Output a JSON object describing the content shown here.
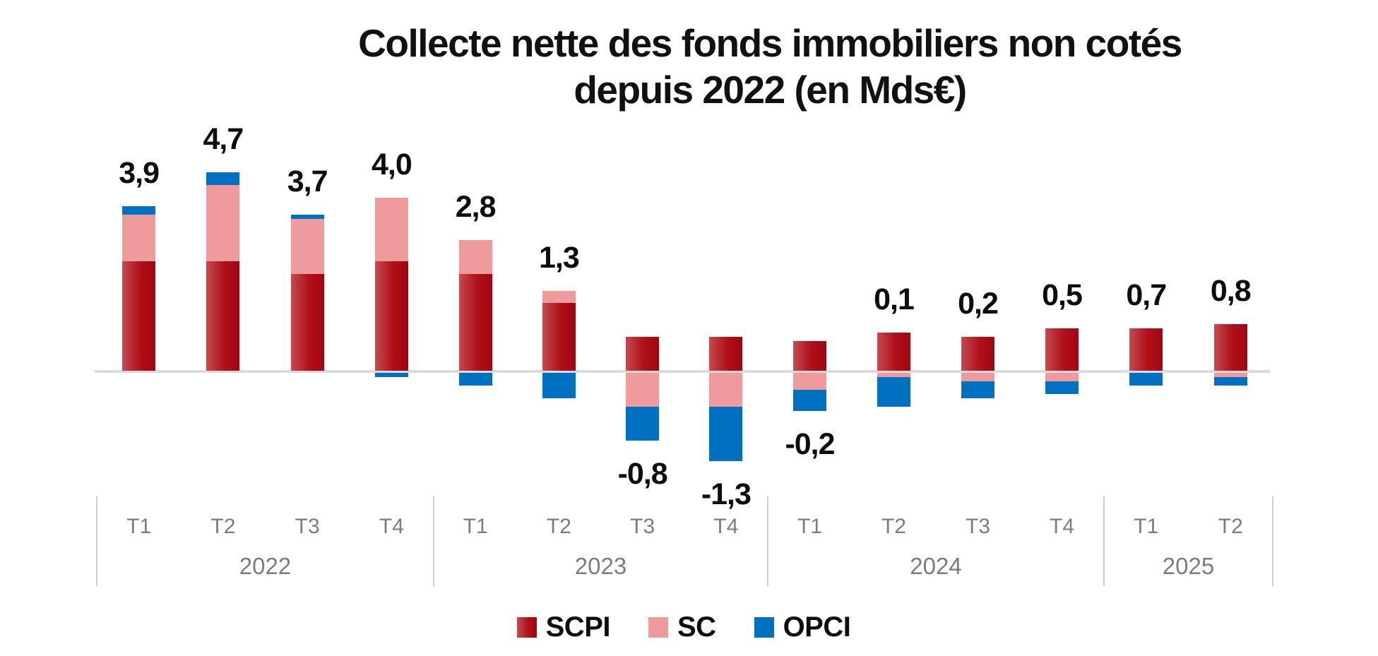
{
  "title": {
    "line1": "Collecte nette des fonds immobiliers non cotés",
    "line2": "depuis 2022 (en Mds€)"
  },
  "legend": {
    "items": [
      {
        "id": "scpi",
        "label": "SCPI",
        "color": "#b01018"
      },
      {
        "id": "sc",
        "label": "SC",
        "color": "#f09b9b"
      },
      {
        "id": "opci",
        "label": "OPCI",
        "color": "#0071c1"
      }
    ],
    "position": "bottom"
  },
  "colors": {
    "scpi_gradient_left": "#c44b51",
    "scpi_gradient_right": "#a20510",
    "sc_pink": "#f09b9b",
    "opci_blue": "#0071c1",
    "zero_line": "#dbdbdb",
    "axis_text": "#7c7c7c",
    "separator": "#cdcdcd",
    "label_text": "#0d0d0d"
  },
  "chart_data": {
    "type": "bar",
    "stacked": true,
    "title": "Collecte nette des fonds immobiliers non cotés depuis 2022 (en Mds€)",
    "unit": "Mds€",
    "grid": false,
    "y_axis_visible": false,
    "legend_position": "bottom",
    "series_order": [
      "SCPI",
      "SC",
      "OPCI"
    ],
    "groups": [
      {
        "year": "2022",
        "quarters": [
          {
            "label": "T1",
            "SCPI": 2.6,
            "SC": 1.1,
            "OPCI": 0.2,
            "total": 3.9,
            "total_label": "3,9"
          },
          {
            "label": "T2",
            "SCPI": 2.6,
            "SC": 1.8,
            "OPCI": 0.3,
            "total": 4.7,
            "total_label": "4,7"
          },
          {
            "label": "T3",
            "SCPI": 2.3,
            "SC": 1.3,
            "OPCI": 0.1,
            "total": 3.7,
            "total_label": "3,7"
          },
          {
            "label": "T4",
            "SCPI": 2.6,
            "SC": 1.5,
            "OPCI": -0.1,
            "total": 4.0,
            "total_label": "4,0"
          }
        ]
      },
      {
        "year": "2023",
        "quarters": [
          {
            "label": "T1",
            "SCPI": 2.3,
            "SC": 0.8,
            "OPCI": -0.3,
            "total": 2.8,
            "total_label": "2,8"
          },
          {
            "label": "T2",
            "SCPI": 1.6,
            "SC": 0.3,
            "OPCI": -0.6,
            "total": 1.3,
            "total_label": "1,3"
          },
          {
            "label": "T3",
            "SCPI": 0.8,
            "SC": -0.8,
            "OPCI": -0.8,
            "total": -0.8,
            "total_label": "-0,8"
          },
          {
            "label": "T4",
            "SCPI": 0.8,
            "SC": -0.8,
            "OPCI": -1.3,
            "total": -1.3,
            "total_label": "-1,3"
          }
        ]
      },
      {
        "year": "2024",
        "quarters": [
          {
            "label": "T1",
            "SCPI": 0.7,
            "SC": -0.4,
            "OPCI": -0.5,
            "total": -0.2,
            "total_label": "-0,2"
          },
          {
            "label": "T2",
            "SCPI": 0.9,
            "SC": -0.1,
            "OPCI": -0.7,
            "total": 0.1,
            "total_label": "0,1"
          },
          {
            "label": "T3",
            "SCPI": 0.8,
            "SC": -0.2,
            "OPCI": -0.4,
            "total": 0.2,
            "total_label": "0,2"
          },
          {
            "label": "T4",
            "SCPI": 1.0,
            "SC": -0.2,
            "OPCI": -0.3,
            "total": 0.5,
            "total_label": "0,5"
          }
        ]
      },
      {
        "year": "2025",
        "quarters": [
          {
            "label": "T1",
            "SCPI": 1.0,
            "SC": 0.0,
            "OPCI": -0.3,
            "total": 0.7,
            "total_label": "0,7"
          },
          {
            "label": "T2",
            "SCPI": 1.1,
            "SC": -0.1,
            "OPCI": -0.2,
            "total": 0.8,
            "total_label": "0,8"
          }
        ]
      }
    ]
  }
}
